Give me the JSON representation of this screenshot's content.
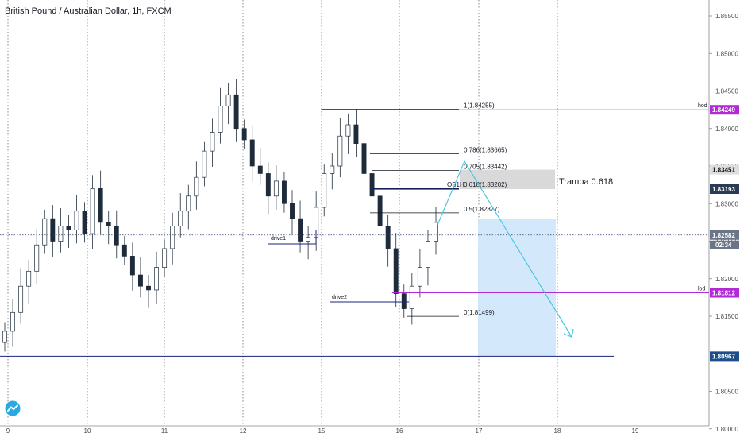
{
  "title": "British Pound / Australian Dollar, 1h, FXCM",
  "colors": {
    "up": "#1e2b3a",
    "down": "#1e2b3a",
    "purple": "#b12ad6",
    "navy": "#1a237e",
    "rect": "#cfe5fb",
    "gray_rect": "#d9d9d9",
    "arrow": "#4ac7de",
    "price_tag": "#1d4e89",
    "last_tag": "#6a7587"
  },
  "chart_data": {
    "type": "candlestick",
    "title": "British Pound / Australian Dollar, 1h, FXCM",
    "x_ticks": [
      "9",
      "10",
      "11",
      "12",
      "15",
      "16",
      "17",
      "18",
      "19"
    ],
    "y_ticks": [
      "1.85500",
      "1.85000",
      "1.84500",
      "1.84000",
      "1.83500",
      "1.83000",
      "1.82500",
      "1.82000",
      "1.81500",
      "1.81000",
      "1.80500",
      "1.80000"
    ],
    "ylim": [
      1.7975,
      1.8575
    ],
    "grid": "vertical dotted session lines",
    "close_path": [
      1.813,
      1.8155,
      1.819,
      1.821,
      1.8245,
      1.828,
      1.825,
      1.827,
      1.8265,
      1.829,
      1.826,
      1.832,
      1.8275,
      1.827,
      1.8245,
      1.823,
      1.8205,
      1.819,
      1.8185,
      1.8215,
      1.824,
      1.827,
      1.829,
      1.831,
      1.8335,
      1.837,
      1.8395,
      1.843,
      1.8445,
      1.84,
      1.8385,
      1.835,
      1.834,
      1.831,
      1.833,
      1.83,
      1.828,
      1.825,
      1.8255,
      1.8295,
      1.834,
      1.835,
      1.839,
      1.8405,
      1.838,
      1.834,
      1.831,
      1.827,
      1.824,
      1.818,
      1.816,
      1.819,
      1.8215,
      1.825,
      1.8275
    ],
    "price_tags": [
      {
        "label": "hod",
        "value": "1.84249",
        "kind": "purple"
      },
      {
        "label": "",
        "value": "1.83451",
        "kind": "gray"
      },
      {
        "label": "",
        "value": "1.83193",
        "kind": "dark"
      },
      {
        "label": "",
        "value": "1.82582",
        "kind": "last",
        "timer": "02:34"
      },
      {
        "label": "lod",
        "value": "1.81812",
        "kind": "purple"
      },
      {
        "label": "",
        "value": "1.80967",
        "kind": "navy"
      }
    ],
    "fib_levels": [
      {
        "label": "1(1.84255)",
        "value": 1.84255
      },
      {
        "label": "0.786(1.83665)",
        "value": 1.83665
      },
      {
        "label": "0.705(1.83442)",
        "value": 1.83442
      },
      {
        "label": "0.618(1.83202)",
        "value": 1.83202
      },
      {
        "label": "0.5(1.82877)",
        "value": 1.82877
      },
      {
        "label": "0(1.81499)",
        "value": 1.81499
      }
    ],
    "annotations": {
      "ob": "OB1H",
      "trampa": "Trampa 0.618",
      "drive1": "drive1",
      "drive2": "drive2"
    }
  }
}
